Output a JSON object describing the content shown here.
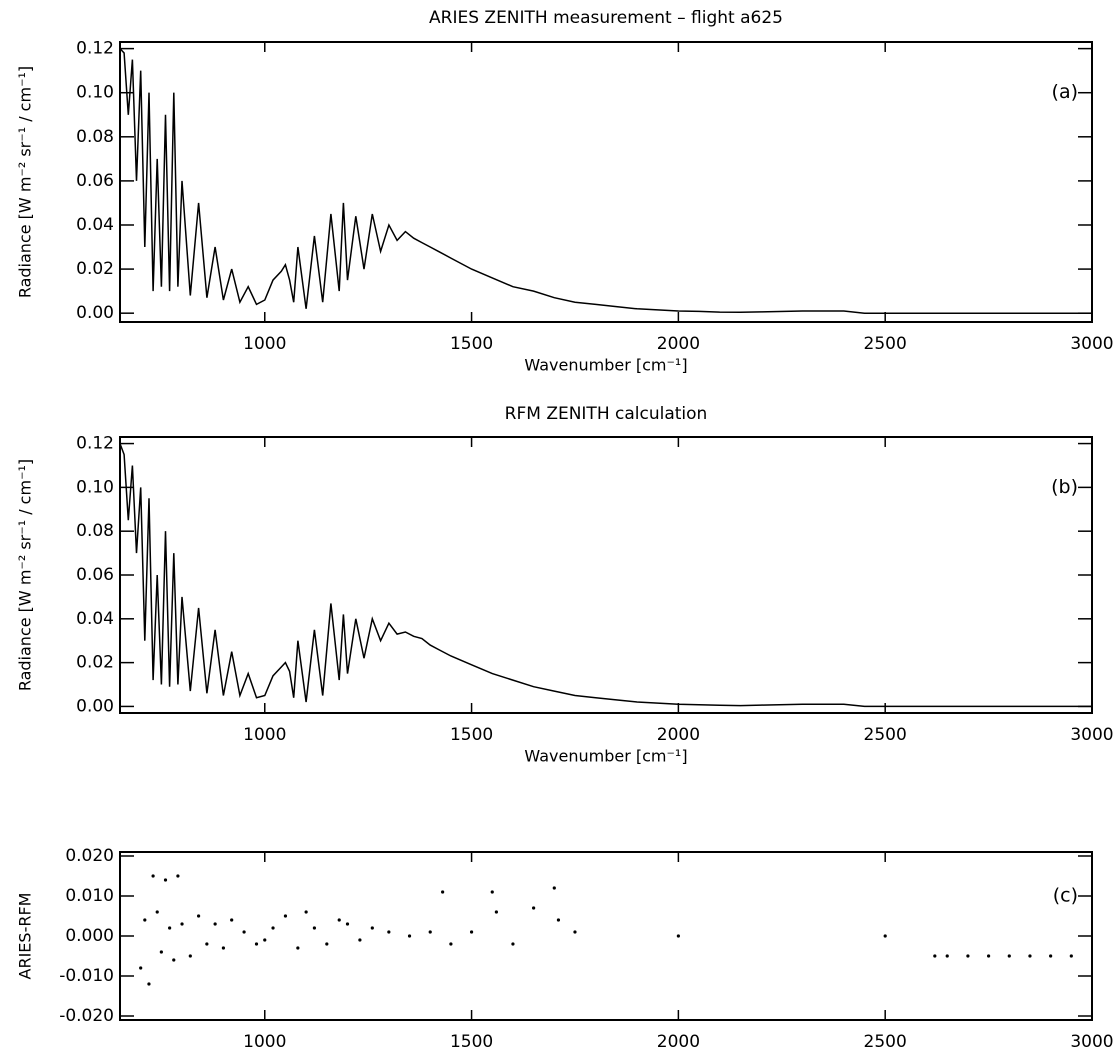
{
  "chart_data": [
    {
      "type": "line",
      "title": "ARIES ZENITH measurement – flight a625",
      "annotation": "(a)",
      "x_label": "Wavenumber [cm⁻¹]",
      "y_label": "Radiance [W m⁻² sr⁻¹ / cm⁻¹]",
      "color": "#000000",
      "x": [
        650,
        660,
        670,
        680,
        690,
        700,
        710,
        720,
        730,
        740,
        750,
        760,
        770,
        780,
        790,
        800,
        820,
        840,
        860,
        880,
        900,
        920,
        940,
        960,
        980,
        1000,
        1020,
        1040,
        1050,
        1060,
        1070,
        1080,
        1100,
        1120,
        1140,
        1160,
        1180,
        1190,
        1200,
        1220,
        1240,
        1260,
        1280,
        1300,
        1320,
        1340,
        1360,
        1380,
        1400,
        1420,
        1450,
        1500,
        1550,
        1600,
        1650,
        1700,
        1750,
        1800,
        1850,
        1900,
        1950,
        2000,
        2050,
        2100,
        2150,
        2200,
        2300,
        2400,
        2450,
        2500,
        2600,
        2700,
        2800,
        2900,
        3000
      ],
      "values": [
        0.12,
        0.118,
        0.09,
        0.115,
        0.06,
        0.11,
        0.03,
        0.1,
        0.01,
        0.07,
        0.012,
        0.09,
        0.01,
        0.1,
        0.012,
        0.06,
        0.008,
        0.05,
        0.007,
        0.03,
        0.006,
        0.02,
        0.005,
        0.012,
        0.004,
        0.006,
        0.015,
        0.019,
        0.022,
        0.015,
        0.005,
        0.03,
        0.002,
        0.035,
        0.005,
        0.045,
        0.01,
        0.05,
        0.015,
        0.044,
        0.02,
        0.045,
        0.028,
        0.04,
        0.033,
        0.037,
        0.034,
        0.032,
        0.03,
        0.028,
        0.025,
        0.02,
        0.016,
        0.012,
        0.01,
        0.007,
        0.005,
        0.004,
        0.003,
        0.002,
        0.0015,
        0.001,
        0.0008,
        0.0005,
        0.0004,
        0.0006,
        0.001,
        0.001,
        0,
        0,
        0,
        0,
        0,
        0,
        0
      ],
      "xlim": [
        650,
        3000
      ],
      "xticks": [
        1000,
        1500,
        2000,
        2500,
        3000
      ],
      "ylim": [
        -0.004,
        0.123
      ],
      "yticks": [
        {
          "value": 0,
          "label": "0.00"
        },
        {
          "value": 0.02,
          "label": "0.02"
        },
        {
          "value": 0.04,
          "label": "0.04"
        },
        {
          "value": 0.06,
          "label": "0.06"
        },
        {
          "value": 0.08,
          "label": "0.08"
        },
        {
          "value": 0.1,
          "label": "0.10"
        },
        {
          "value": 0.12,
          "label": "0.12"
        }
      ]
    },
    {
      "type": "line",
      "title": "RFM ZENITH calculation",
      "annotation": "(b)",
      "x_label": "Wavenumber [cm⁻¹]",
      "y_label": "Radiance [W m⁻² sr⁻¹ / cm⁻¹]",
      "color": "#000000",
      "x": [
        650,
        660,
        670,
        680,
        690,
        700,
        710,
        720,
        730,
        740,
        750,
        760,
        770,
        780,
        790,
        800,
        820,
        840,
        860,
        880,
        900,
        920,
        940,
        960,
        980,
        1000,
        1020,
        1040,
        1050,
        1060,
        1070,
        1080,
        1100,
        1120,
        1140,
        1160,
        1180,
        1190,
        1200,
        1220,
        1240,
        1260,
        1280,
        1300,
        1320,
        1340,
        1360,
        1380,
        1400,
        1420,
        1450,
        1500,
        1550,
        1600,
        1650,
        1700,
        1750,
        1800,
        1850,
        1900,
        1950,
        2000,
        2050,
        2100,
        2150,
        2200,
        2300,
        2400,
        2450,
        2500,
        2600,
        2700,
        2800,
        2900,
        3000
      ],
      "values": [
        0.12,
        0.115,
        0.085,
        0.11,
        0.07,
        0.1,
        0.03,
        0.095,
        0.012,
        0.06,
        0.01,
        0.08,
        0.009,
        0.07,
        0.01,
        0.05,
        0.007,
        0.045,
        0.006,
        0.035,
        0.005,
        0.025,
        0.005,
        0.015,
        0.004,
        0.005,
        0.014,
        0.018,
        0.02,
        0.016,
        0.004,
        0.03,
        0.002,
        0.035,
        0.005,
        0.047,
        0.012,
        0.042,
        0.015,
        0.04,
        0.022,
        0.04,
        0.03,
        0.038,
        0.033,
        0.034,
        0.032,
        0.031,
        0.028,
        0.026,
        0.023,
        0.019,
        0.015,
        0.012,
        0.009,
        0.007,
        0.005,
        0.004,
        0.003,
        0.002,
        0.0015,
        0.001,
        0.0008,
        0.0005,
        0.0004,
        0.0006,
        0.001,
        0.001,
        0,
        0,
        0,
        0,
        0,
        0,
        0
      ],
      "xlim": [
        650,
        3000
      ],
      "xticks": [
        1000,
        1500,
        2000,
        2500,
        3000
      ],
      "ylim": [
        -0.003,
        0.123
      ],
      "yticks": [
        {
          "value": 0,
          "label": "0.00"
        },
        {
          "value": 0.02,
          "label": "0.02"
        },
        {
          "value": 0.04,
          "label": "0.04"
        },
        {
          "value": 0.06,
          "label": "0.06"
        },
        {
          "value": 0.08,
          "label": "0.08"
        },
        {
          "value": 0.1,
          "label": "0.10"
        },
        {
          "value": 0.12,
          "label": "0.12"
        }
      ]
    },
    {
      "type": "scatter",
      "annotation": "(c)",
      "x_label": "Wavenumber [cm⁻¹]",
      "y_label": "ARIES-RFM",
      "color": "#000000",
      "x": [
        700,
        710,
        720,
        730,
        740,
        750,
        760,
        770,
        780,
        790,
        800,
        820,
        840,
        860,
        880,
        900,
        920,
        950,
        980,
        1000,
        1020,
        1050,
        1080,
        1100,
        1120,
        1150,
        1180,
        1200,
        1230,
        1260,
        1300,
        1350,
        1400,
        1430,
        1450,
        1500,
        1550,
        1560,
        1600,
        1650,
        1700,
        1710,
        1750,
        2000,
        2500,
        2620,
        2650,
        2700,
        2750,
        2800,
        2850,
        2900,
        2950
      ],
      "values": [
        -0.008,
        0.004,
        -0.012,
        0.015,
        0.006,
        -0.004,
        0.014,
        0.002,
        -0.006,
        0.015,
        0.003,
        -0.005,
        0.005,
        -0.002,
        0.003,
        -0.003,
        0.004,
        0.001,
        -0.002,
        -0.001,
        0.002,
        0.005,
        -0.003,
        0.006,
        0.002,
        -0.002,
        0.004,
        0.003,
        -0.001,
        0.002,
        0.001,
        0,
        0.001,
        0.011,
        -0.002,
        0.001,
        0.011,
        0.006,
        -0.002,
        0.007,
        0.012,
        0.004,
        0.001,
        0,
        0,
        -0.005,
        -0.005,
        -0.005,
        -0.005,
        -0.005,
        -0.005,
        -0.005,
        -0.005
      ],
      "xlim": [
        650,
        3000
      ],
      "xticks": [
        1000,
        1500,
        2000,
        2500,
        3000
      ],
      "ylim": [
        -0.021,
        0.021
      ],
      "yticks": [
        {
          "value": -0.02,
          "label": "-0.020"
        },
        {
          "value": -0.01,
          "label": "-0.010"
        },
        {
          "value": 0,
          "label": "0.000"
        },
        {
          "value": 0.01,
          "label": "0.010"
        },
        {
          "value": 0.02,
          "label": "0.020"
        }
      ]
    }
  ]
}
